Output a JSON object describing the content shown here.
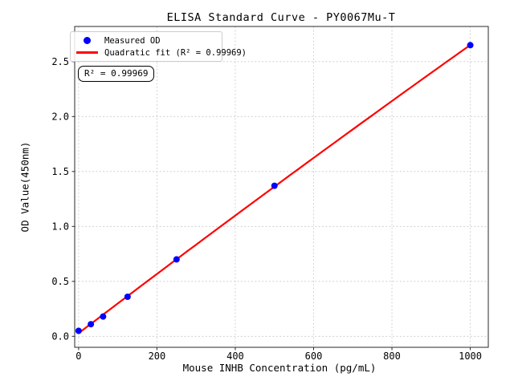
{
  "figure": {
    "background": "#ffffff",
    "annotation": "R² = 0.99969",
    "legend": {
      "position": "upper left",
      "items": [
        {
          "label": "Measured OD",
          "marker": "dot",
          "color": "#0000ff"
        },
        {
          "label": "Quadratic fit (R² = 0.99969)",
          "marker": "line",
          "color": "#ff0000"
        }
      ]
    }
  },
  "chart_data": {
    "type": "scatter",
    "title": "ELISA Standard Curve - PY0067Mu-T",
    "xlabel": "Mouse INHB Concentration (pg/mL)",
    "ylabel": "OD Value(450nm)",
    "series": [
      {
        "name": "Measured OD",
        "type": "scatter",
        "color": "#0000ff",
        "marker_radius": 4,
        "x": [
          0,
          31.25,
          62.5,
          125,
          250,
          500,
          1000
        ],
        "y": [
          0.05,
          0.11,
          0.18,
          0.36,
          0.7,
          1.37,
          2.65
        ]
      },
      {
        "name": "Quadratic fit",
        "type": "line",
        "color": "#ff0000",
        "line_width": 2.2,
        "fit": "quadratic",
        "fit_of_series": 0,
        "r_squared": 0.99969,
        "x_range": [
          0,
          1000
        ]
      }
    ],
    "xticks": {
      "values": [
        0,
        200,
        400,
        600,
        800,
        1000
      ],
      "labels": [
        "0",
        "200",
        "400",
        "600",
        "800",
        "1000"
      ]
    },
    "yticks": {
      "values": [
        0,
        0.5,
        1.0,
        1.5,
        2.0,
        2.5
      ],
      "labels": [
        "0.0",
        "0.5",
        "1.0",
        "1.5",
        "2.0",
        "2.5"
      ]
    },
    "xlim": [
      -10,
      1046
    ],
    "ylim": [
      -0.1,
      2.82
    ],
    "grid": true,
    "grid_color": "#c9c9c9",
    "spine_color": "#2a2a2a",
    "legend_position": "upper left"
  }
}
